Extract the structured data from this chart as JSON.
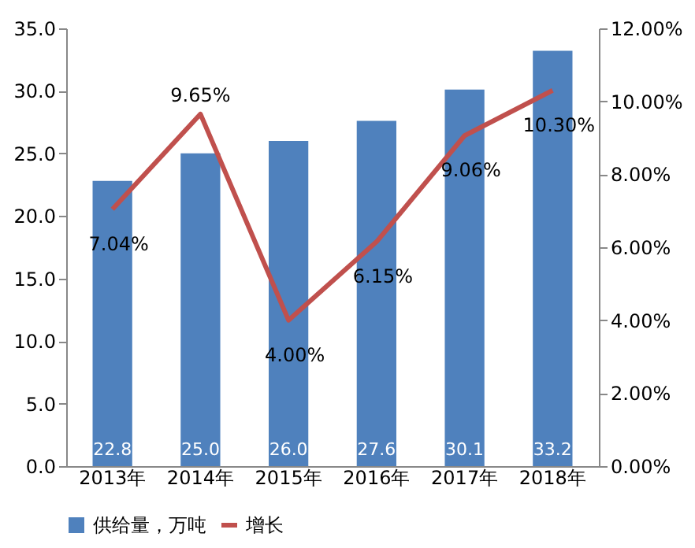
{
  "chart_data": {
    "type": "bar",
    "categories": [
      "2013年",
      "2014年",
      "2015年",
      "2016年",
      "2017年",
      "2018年"
    ],
    "series": [
      {
        "name": "供给量，万吨",
        "color": "#4f81bd",
        "values": [
          22.8,
          25.0,
          26.0,
          27.6,
          30.1,
          33.2
        ],
        "value_labels": [
          "22.8",
          "25.0",
          "26.0",
          "27.6",
          "30.1",
          "33.2"
        ]
      },
      {
        "name": "增长",
        "type": "line",
        "axis": "y2",
        "color": "#c0504d",
        "values": [
          7.04,
          9.65,
          4.0,
          6.15,
          9.06,
          10.3
        ],
        "value_labels": [
          "7.04%",
          "9.65%",
          "4.00%",
          "6.15%",
          "9.06%",
          "10.30%"
        ]
      }
    ],
    "ylim": [
      0,
      35
    ],
    "yticks": [
      {
        "value": 0,
        "label": "0.0"
      },
      {
        "value": 5,
        "label": "5.0"
      },
      {
        "value": 10,
        "label": "10.0"
      },
      {
        "value": 15,
        "label": "15.0"
      },
      {
        "value": 20,
        "label": "20.0"
      },
      {
        "value": 25,
        "label": "25.0"
      },
      {
        "value": 30,
        "label": "30.0"
      },
      {
        "value": 35,
        "label": "35.0"
      }
    ],
    "y2lim": [
      0,
      12
    ],
    "y2ticks": [
      {
        "value": 0,
        "label": "0.00%"
      },
      {
        "value": 2,
        "label": "2.00%"
      },
      {
        "value": 4,
        "label": "4.00%"
      },
      {
        "value": 6,
        "label": "6.00%"
      },
      {
        "value": 8,
        "label": "8.00%"
      },
      {
        "value": 10,
        "label": "10.00%"
      },
      {
        "value": 12,
        "label": "12.00%"
      }
    ],
    "grid": false,
    "legend": "bottom",
    "marker": "none",
    "line_style": "solid"
  }
}
